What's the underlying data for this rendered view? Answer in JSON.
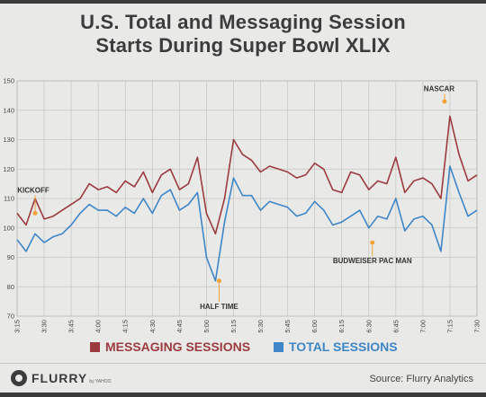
{
  "title_lines": [
    "U.S. Total and Messaging Session",
    "Starts During Super Bowl XLIX"
  ],
  "source": "Source: Flurry Analytics",
  "logo": {
    "text": "FLURRY",
    "sub": "by YAHOO"
  },
  "colors": {
    "messaging": "#9b3b3f",
    "total": "#3f86c8",
    "annotation": "#f0a33a",
    "text": "#3c3c3c"
  },
  "chart_data": {
    "type": "line",
    "title": "U.S. Total and Messaging Session Starts During Super Bowl XLIX",
    "ylim": [
      70,
      150
    ],
    "yticks": [
      70,
      80,
      90,
      100,
      110,
      120,
      130,
      140,
      150
    ],
    "xticks": [
      "3:15",
      "3:30",
      "3:45",
      "4:00",
      "4:15",
      "4:30",
      "4:45",
      "5:00",
      "5:15",
      "5:30",
      "5:45",
      "6:00",
      "6:15",
      "6:30",
      "6:45",
      "7:00",
      "7:15",
      "7:30"
    ],
    "grid": true,
    "legend_position": "bottom",
    "x_minutes": [
      0,
      5,
      10,
      15,
      20,
      25,
      30,
      35,
      40,
      45,
      50,
      55,
      60,
      65,
      70,
      75,
      80,
      85,
      90,
      95,
      100,
      105,
      110,
      115,
      120,
      125,
      130,
      135,
      140,
      145,
      150,
      155,
      160,
      165,
      170,
      175,
      180,
      185,
      190,
      195,
      200,
      205,
      210,
      215,
      220,
      225,
      230,
      235,
      240,
      245,
      250,
      255
    ],
    "series": [
      {
        "name": "MESSAGING SESSIONS",
        "values": [
          105,
          101,
          110,
          103,
          104,
          106,
          108,
          110,
          115,
          113,
          114,
          112,
          116,
          114,
          119,
          112,
          118,
          120,
          113,
          115,
          124,
          105,
          98,
          110,
          130,
          125,
          123,
          119,
          121,
          120,
          119,
          117,
          118,
          122,
          120,
          113,
          112,
          119,
          118,
          113,
          116,
          115,
          124,
          112,
          116,
          117,
          115,
          110,
          138,
          125,
          116,
          118
        ]
      },
      {
        "name": "TOTAL SESSIONS",
        "values": [
          96,
          92,
          98,
          95,
          97,
          98,
          101,
          105,
          108,
          106,
          106,
          104,
          107,
          105,
          110,
          105,
          111,
          113,
          106,
          108,
          112,
          90,
          82,
          102,
          117,
          111,
          111,
          106,
          109,
          108,
          107,
          104,
          105,
          109,
          106,
          101,
          102,
          104,
          106,
          100,
          104,
          103,
          110,
          99,
          103,
          104,
          101,
          92,
          121,
          112,
          104,
          106
        ]
      }
    ],
    "annotations": [
      {
        "label": "KICKOFF",
        "x_minutes": 10,
        "y": 105
      },
      {
        "label": "HALF TIME",
        "x_minutes": 112,
        "y": 82
      },
      {
        "label": "BUDWEISER PAC MAN",
        "x_minutes": 197,
        "y": 95
      },
      {
        "label": "NASCAR",
        "x_minutes": 237,
        "y": 143
      }
    ]
  }
}
